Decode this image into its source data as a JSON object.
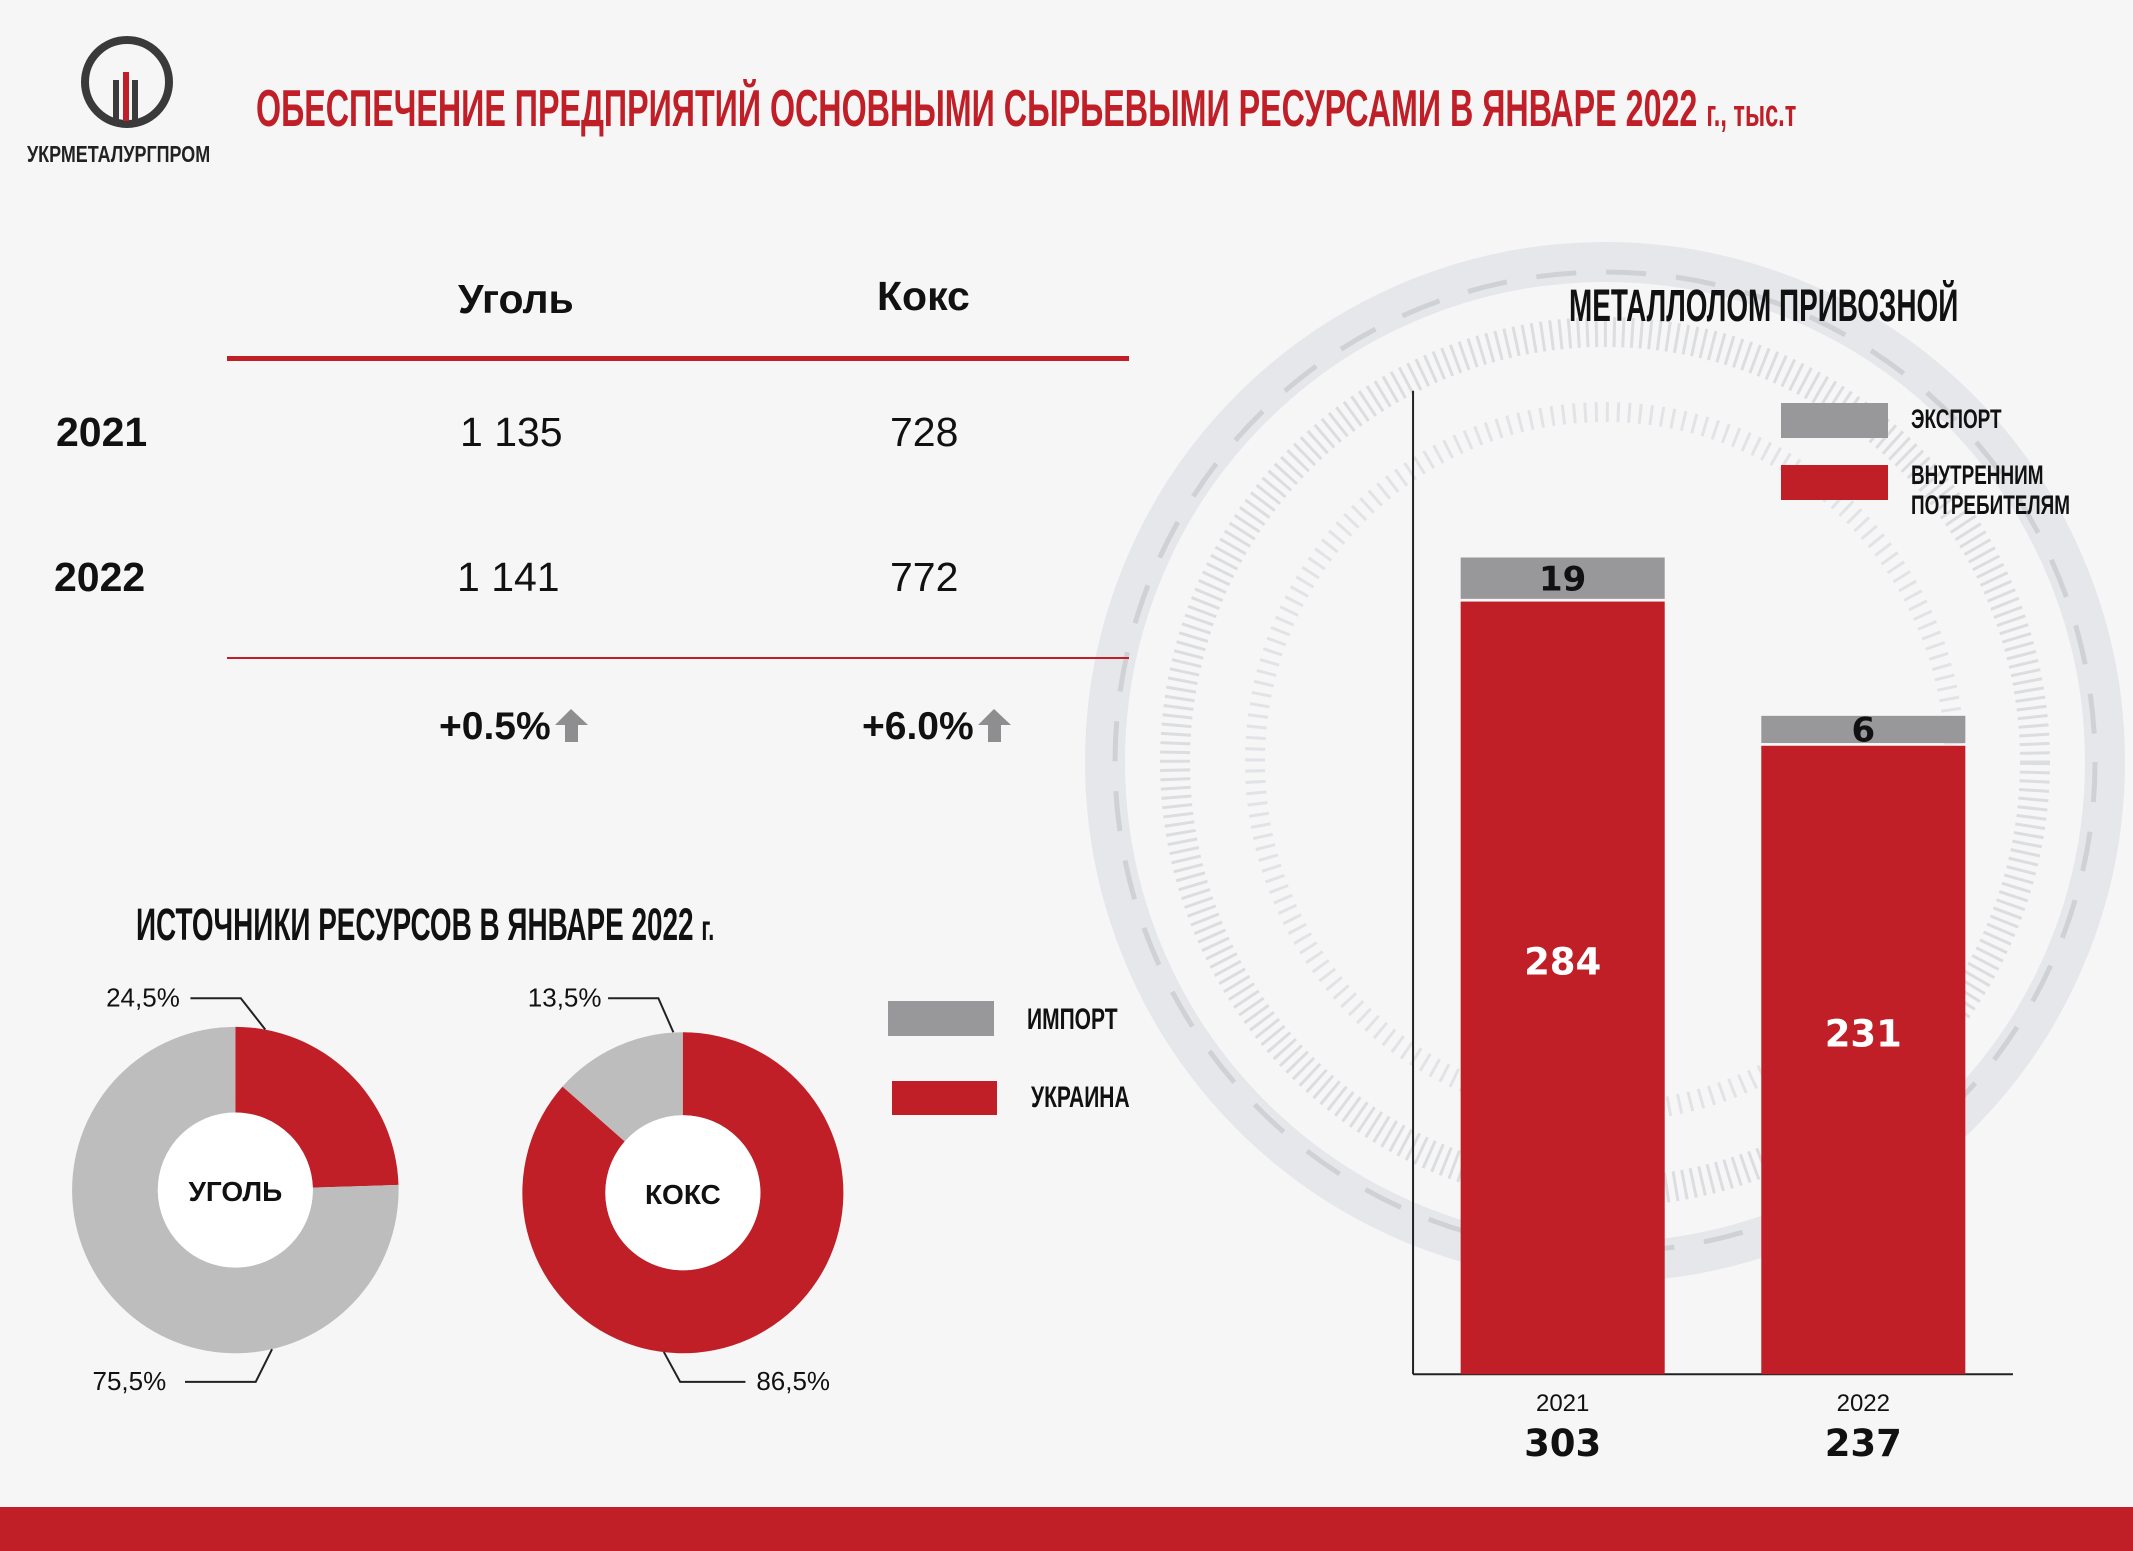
{
  "brand": {
    "name": "УКРМЕТАЛУРГПРОМ"
  },
  "title": {
    "main": "ОБЕСПЕЧЕНИЕ ПРЕДПРИЯТИЙ ОСНОВНЫМИ СЫРЬЕВЫМИ РЕСУРСАМИ В ЯНВАРЕ 2022",
    "suffix": "г., тыс.т"
  },
  "colors": {
    "red": "#c01f27",
    "gray": "#98989b",
    "light_gray": "#bdbdbd"
  },
  "chart_data": [
    {
      "type": "table",
      "columns": [
        "Уголь",
        "Кокс"
      ],
      "rows": [
        {
          "year": "2021",
          "values": [
            "1 135",
            "728"
          ]
        },
        {
          "year": "2022",
          "values": [
            "1 141",
            "772"
          ]
        }
      ],
      "changes": [
        "+0.5%",
        "+6.0%"
      ],
      "change_icon": "arrow-up-icon"
    },
    {
      "type": "pie",
      "title": "ИСТОЧНИКИ РЕСУРСОВ В ЯНВАРЕ 2022",
      "title_suffix": "г.",
      "legend": [
        "ИМПОРТ",
        "УКРАИНА"
      ],
      "donuts": [
        {
          "label": "УГОЛЬ",
          "import": 24.5,
          "ukraine": 75.5,
          "import_label": "24,5%",
          "ukraine_label": "75,5%"
        },
        {
          "label": "КОКС",
          "import": 13.5,
          "ukraine": 86.5,
          "import_label": "13,5%",
          "ukraine_label": "86,5%"
        }
      ]
    },
    {
      "type": "bar",
      "title": "МЕТАЛЛОЛОМ ПРИВОЗНОЙ",
      "categories": [
        "2021",
        "2022"
      ],
      "series": [
        {
          "name": "ВНУТРЕННИМ ПОТРЕБИТЕЛЯМ",
          "values": [
            284,
            231
          ]
        },
        {
          "name": "ЭКСПОРТ",
          "values": [
            19,
            6
          ]
        }
      ],
      "legend_lines": [
        "ЭКСПОРТ",
        "ВНУТРЕННИМ",
        "ПОТРЕБИТЕЛЯМ"
      ],
      "totals": [
        "303",
        "237"
      ],
      "stacked": true
    }
  ]
}
